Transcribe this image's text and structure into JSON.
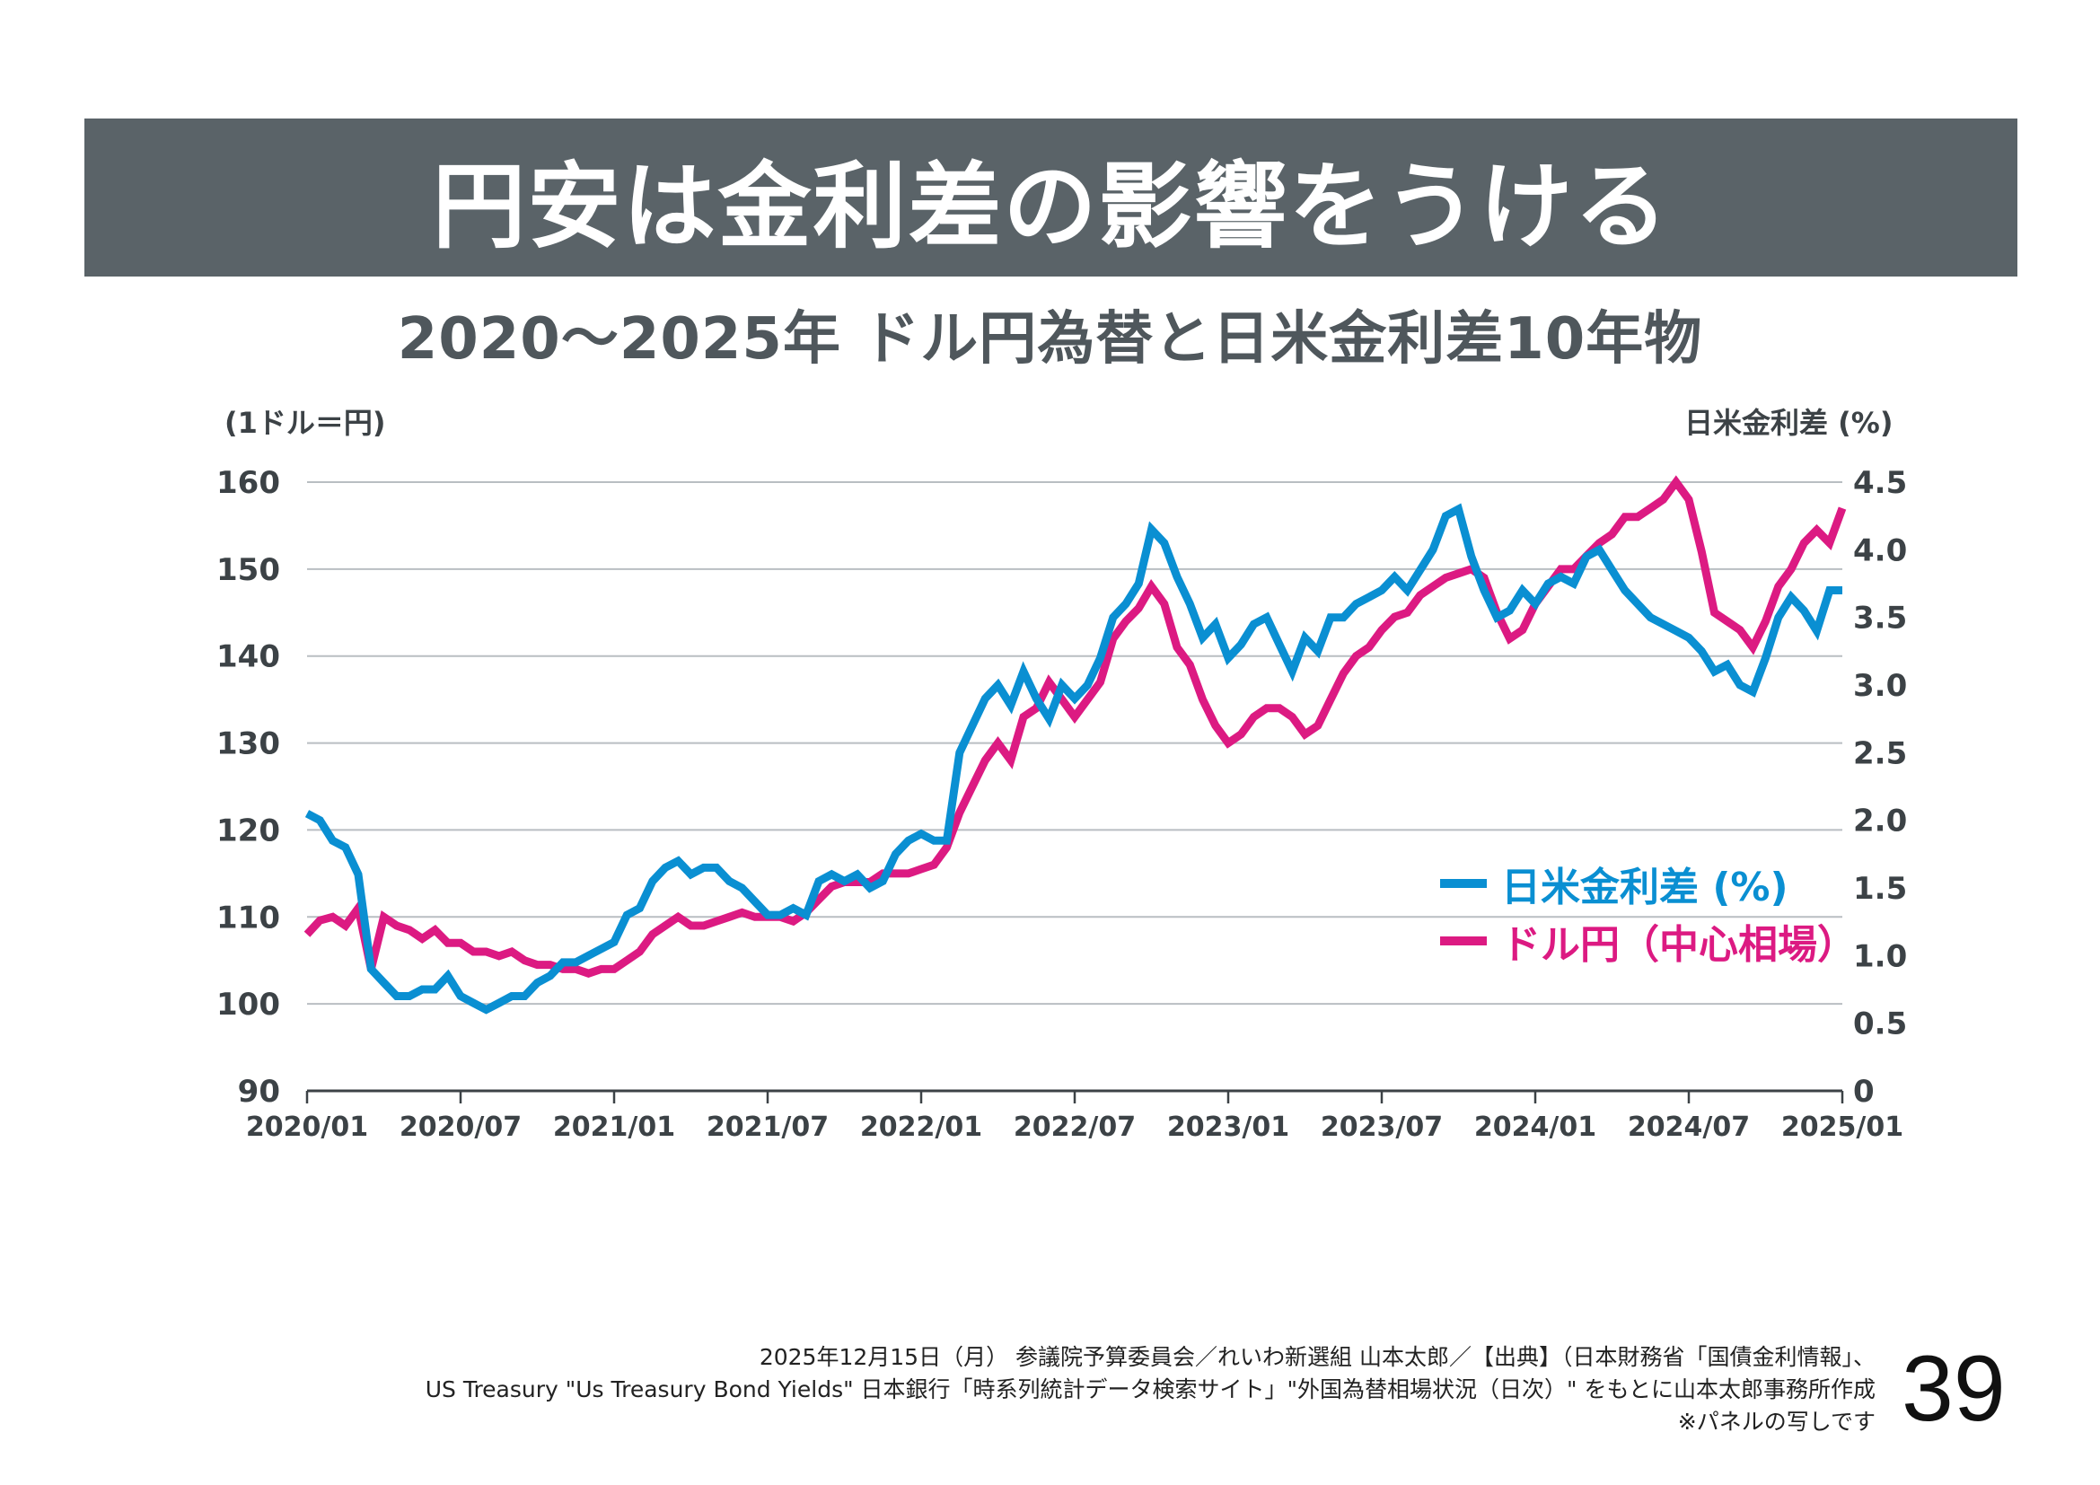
{
  "slide": {
    "title": "円安は金利差の影響をうける",
    "subtitle": "2020〜2025年 ドル円為替と日米金利差10年物",
    "page_number": "39"
  },
  "footer": {
    "lines": [
      "2025年12月15日（月） 参議院予算委員会／れいわ新選組 山本太郎／【出典】（日本財務省「国債金利情報」、",
      "US Treasury \"Us Treasury Bond Yields\" 日本銀行「時系列統計データ検索サイト」\"外国為替相場状況（日次）\" をもとに山本太郎事務所作成",
      "※パネルの写しです"
    ]
  },
  "colors": {
    "title_band": "#5a6368",
    "spread": "#0a8fd2",
    "usdjpy": "#dc1a82",
    "text": "#3c4246"
  },
  "chart_data": {
    "type": "line",
    "title": "2020〜2025年 ドル円為替と日米金利差10年物",
    "xlabel": "",
    "ylabel": "(1ドル＝円)",
    "y2label": "日米金利差 (%)",
    "x_range": [
      "2020/01",
      "2025/01"
    ],
    "x_ticks": [
      "2020/01",
      "2020/07",
      "2021/01",
      "2021/07",
      "2022/01",
      "2022/07",
      "2023/01",
      "2023/07",
      "2024/01",
      "2024/07",
      "2025/01"
    ],
    "ylim": [
      90,
      160
    ],
    "y_ticks": [
      "160",
      "150",
      "140",
      "130",
      "120",
      "110",
      "100",
      "90"
    ],
    "y2lim": [
      0,
      4.5
    ],
    "y2_ticks": [
      "4.5",
      "4.0",
      "3.5",
      "3.0",
      "2.5",
      "2.0",
      "1.5",
      "1.0",
      "0.5",
      "0"
    ],
    "grid": true,
    "legend_position": "center-right",
    "x_step_months": 0.5,
    "series": [
      {
        "name": "日米金利差 (%)",
        "axis": "right",
        "color": "#0a8fd2",
        "values": [
          2.05,
          2.0,
          1.85,
          1.8,
          1.6,
          0.9,
          0.8,
          0.7,
          0.7,
          0.75,
          0.75,
          0.85,
          0.7,
          0.65,
          0.6,
          0.65,
          0.7,
          0.7,
          0.8,
          0.85,
          0.95,
          0.95,
          1.0,
          1.05,
          1.1,
          1.3,
          1.35,
          1.55,
          1.65,
          1.7,
          1.6,
          1.65,
          1.65,
          1.55,
          1.5,
          1.4,
          1.3,
          1.3,
          1.35,
          1.3,
          1.55,
          1.6,
          1.55,
          1.6,
          1.5,
          1.55,
          1.75,
          1.85,
          1.9,
          1.85,
          1.85,
          2.5,
          2.7,
          2.9,
          3.0,
          2.85,
          3.1,
          2.9,
          2.75,
          3.0,
          2.9,
          3.0,
          3.2,
          3.5,
          3.6,
          3.75,
          4.15,
          4.05,
          3.8,
          3.6,
          3.35,
          3.45,
          3.2,
          3.3,
          3.45,
          3.5,
          3.3,
          3.1,
          3.35,
          3.25,
          3.5,
          3.5,
          3.6,
          3.65,
          3.7,
          3.8,
          3.7,
          3.85,
          4.0,
          4.25,
          4.3,
          3.95,
          3.7,
          3.5,
          3.55,
          3.7,
          3.6,
          3.75,
          3.8,
          3.75,
          3.95,
          4.0,
          3.85,
          3.7,
          3.6,
          3.5,
          3.45,
          3.4,
          3.35,
          3.25,
          3.1,
          3.15,
          3.0,
          2.95,
          3.2,
          3.5,
          3.65,
          3.55,
          3.4,
          3.7,
          3.7
        ]
      },
      {
        "name": "ドル円（中心相場）",
        "axis": "left",
        "color": "#dc1a82",
        "values": [
          108,
          109.6,
          110,
          109,
          111,
          104,
          110,
          109,
          108.5,
          107.5,
          108.5,
          107,
          107,
          106,
          106,
          105.5,
          106,
          105,
          104.5,
          104.5,
          104,
          104,
          103.5,
          104,
          104,
          105,
          106,
          108,
          109,
          110,
          109,
          109,
          109.5,
          110,
          110.5,
          110,
          110,
          110,
          109.5,
          110.5,
          112,
          113.5,
          114,
          114,
          114,
          115,
          115,
          115,
          115.5,
          116,
          118,
          122,
          125,
          128,
          130,
          128,
          133,
          134,
          137,
          135,
          133,
          135,
          137,
          142,
          144,
          145.5,
          148,
          146,
          141,
          139,
          135,
          132,
          130,
          131,
          133,
          134,
          134,
          133,
          131,
          132,
          135,
          138,
          140,
          141,
          143,
          144.5,
          145,
          147,
          148,
          149,
          149.5,
          150,
          149,
          145,
          142,
          143,
          146,
          148,
          150,
          150,
          151.5,
          153,
          154,
          156,
          156,
          157,
          158,
          160,
          158,
          152,
          145,
          144,
          143,
          141,
          144,
          148,
          150,
          153,
          154.5,
          153,
          157
        ]
      }
    ]
  }
}
